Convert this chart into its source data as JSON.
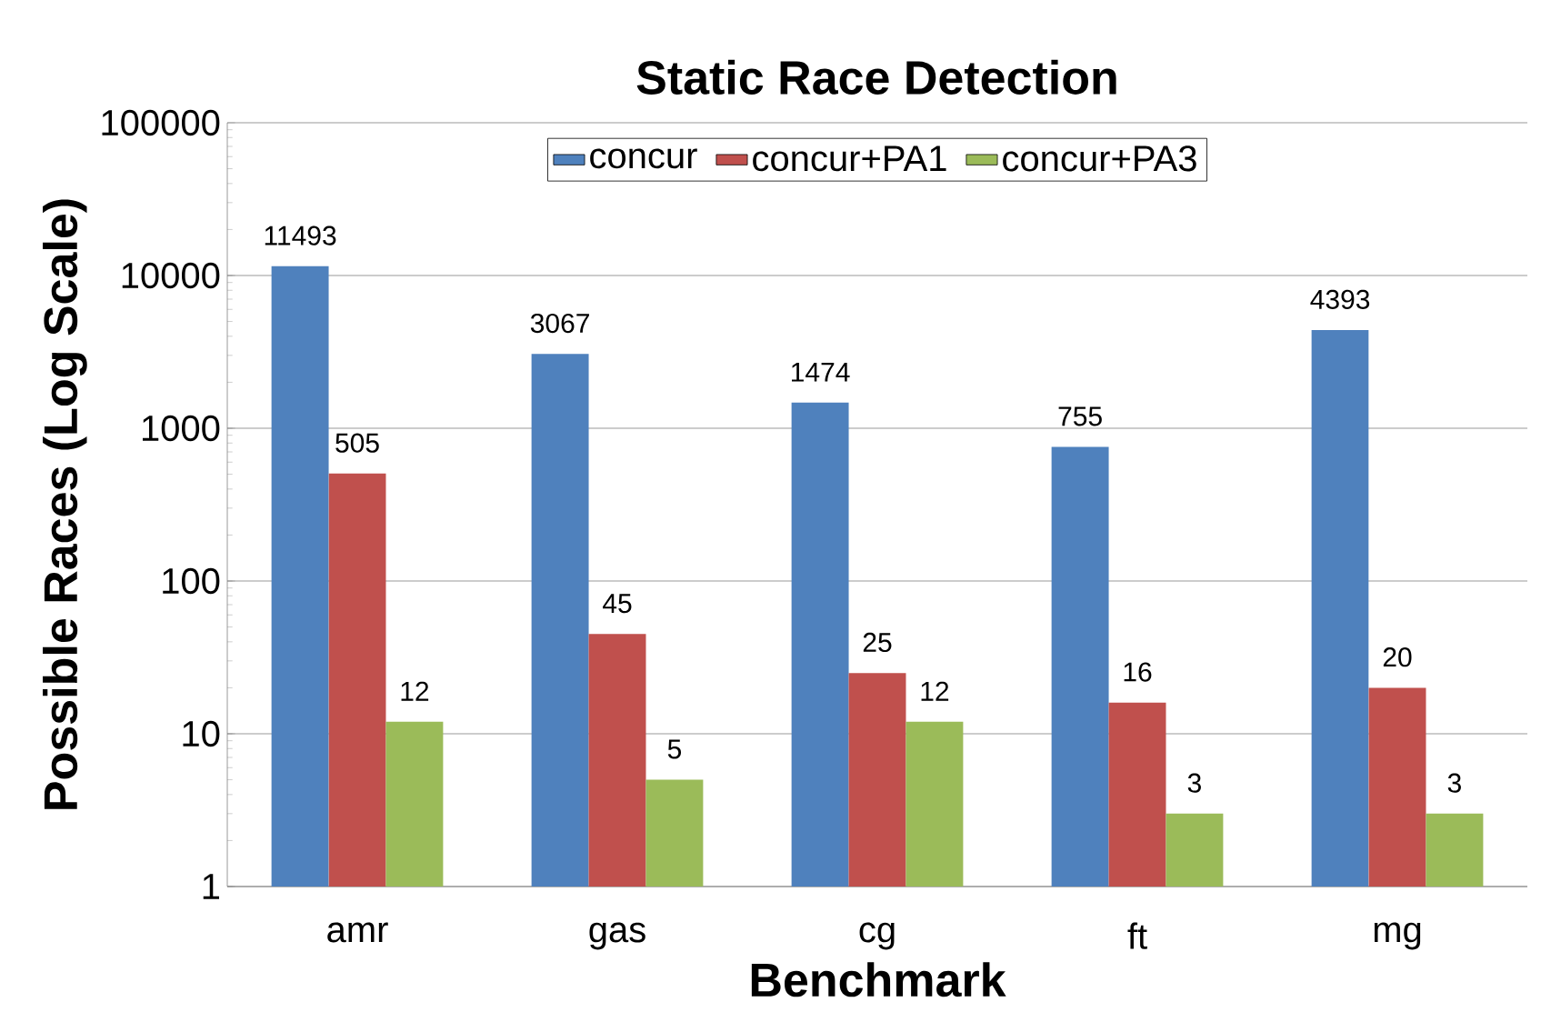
{
  "chart_data": {
    "type": "bar",
    "title": "Static Race Detection",
    "xlabel": "Benchmark",
    "ylabel": "Possible Races (Log Scale)",
    "categories": [
      "amr",
      "gas",
      "cg",
      "ft",
      "mg"
    ],
    "series": [
      {
        "name": "concur",
        "color": "#4f81bd",
        "values": [
          11493,
          3067,
          1474,
          755,
          4393
        ]
      },
      {
        "name": "concur+PA1",
        "color": "#c0504d",
        "values": [
          505,
          45,
          25,
          16,
          20
        ]
      },
      {
        "name": "concur+PA3",
        "color": "#9bbb59",
        "values": [
          12,
          5,
          12,
          3,
          3
        ]
      }
    ],
    "log": "y",
    "ylim": [
      1,
      100000
    ],
    "yticks": [
      1,
      10,
      100,
      1000,
      10000,
      100000
    ],
    "grid": "y",
    "legend": "top",
    "data_labels": true
  }
}
